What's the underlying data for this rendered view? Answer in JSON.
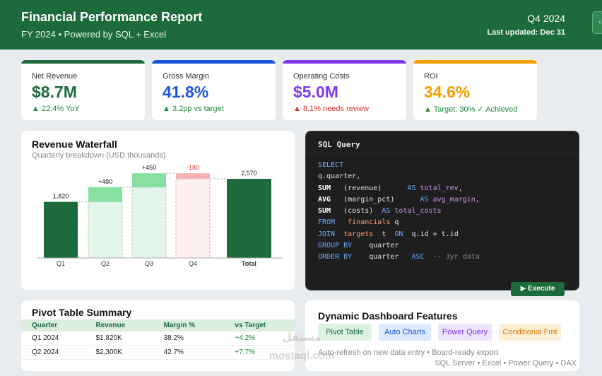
{
  "header": {
    "title": "Financial Performance Report",
    "subtitle": "FY 2024 • Powered by SQL + Excel",
    "quarter": "Q4 2024",
    "updated": "Last updated: Dec 31"
  },
  "kpis": [
    {
      "label": "Net Revenue",
      "value": "$8.7M",
      "delta": "▲ 22.4% YoY",
      "color": "#1d6b3c",
      "delta_color": "#1e8a40"
    },
    {
      "label": "Gross Margin",
      "value": "41.8%",
      "delta": "▲ 3.2pp vs target",
      "color": "#1a56db",
      "delta_color": "#1e8a40"
    },
    {
      "label": "Operating Costs",
      "value": "$5.0M",
      "delta": "▲ 8.1% needs review",
      "color": "#7c3aed",
      "delta_color": "#e03131"
    },
    {
      "label": "ROI",
      "value": "34.6%",
      "delta": "▲ Target: 30% ✓ Achieved",
      "color": "#f59f00",
      "delta_color": "#1e8a40"
    }
  ],
  "waterfall": {
    "title": "Revenue Waterfall",
    "subtitle": "Quarterly breakdown (USD thousands)"
  },
  "chart_data": {
    "type": "bar",
    "title": "Revenue Waterfall",
    "subtitle": "Quarterly breakdown (USD thousands)",
    "categories": [
      "Q1",
      "Q2",
      "Q3",
      "Q4",
      "Total"
    ],
    "values": [
      1820,
      480,
      450,
      -180,
      2570
    ],
    "labels": [
      "1,820",
      "+480",
      "+450",
      "-180",
      "2,570"
    ],
    "kinds": [
      "base",
      "increase",
      "increase",
      "decrease",
      "total"
    ],
    "colors": {
      "base": "#1d6b3c",
      "increase": "#86e0a0",
      "decrease": "#f4b4b4",
      "total": "#1d6b3c"
    }
  },
  "sql": {
    "title": "SQL Query",
    "execute_label": "▶  Execute"
  },
  "pivot": {
    "title": "Pivot Table Summary",
    "columns": [
      "Quarter",
      "Revenue",
      "Margin %",
      "vs Target"
    ],
    "rows": [
      [
        "Q1 2024",
        "$1,820K",
        "38.2%",
        "+4.2%"
      ],
      [
        "Q2 2024",
        "$2,300K",
        "42.7%",
        "+7.7%"
      ]
    ]
  },
  "features": {
    "title": "Dynamic Dashboard Features",
    "chips": [
      {
        "label": "Pivot Table",
        "bg": "#dcf3e3",
        "fg": "#1d6b3c"
      },
      {
        "label": "Auto Charts",
        "bg": "#dbeafe",
        "fg": "#1a56db"
      },
      {
        "label": "Power Query",
        "bg": "#ede3fb",
        "fg": "#7c3aed"
      },
      {
        "label": "Conditional Fmt",
        "bg": "#fdefd6",
        "fg": "#d97706"
      }
    ],
    "note1": "Auto-refresh on new data entry • Board-ready export",
    "note2": "SQL Server • Excel • Power Query • DAX"
  },
  "watermark": {
    "line1": "مستقل",
    "line2": "mostaql.com"
  }
}
